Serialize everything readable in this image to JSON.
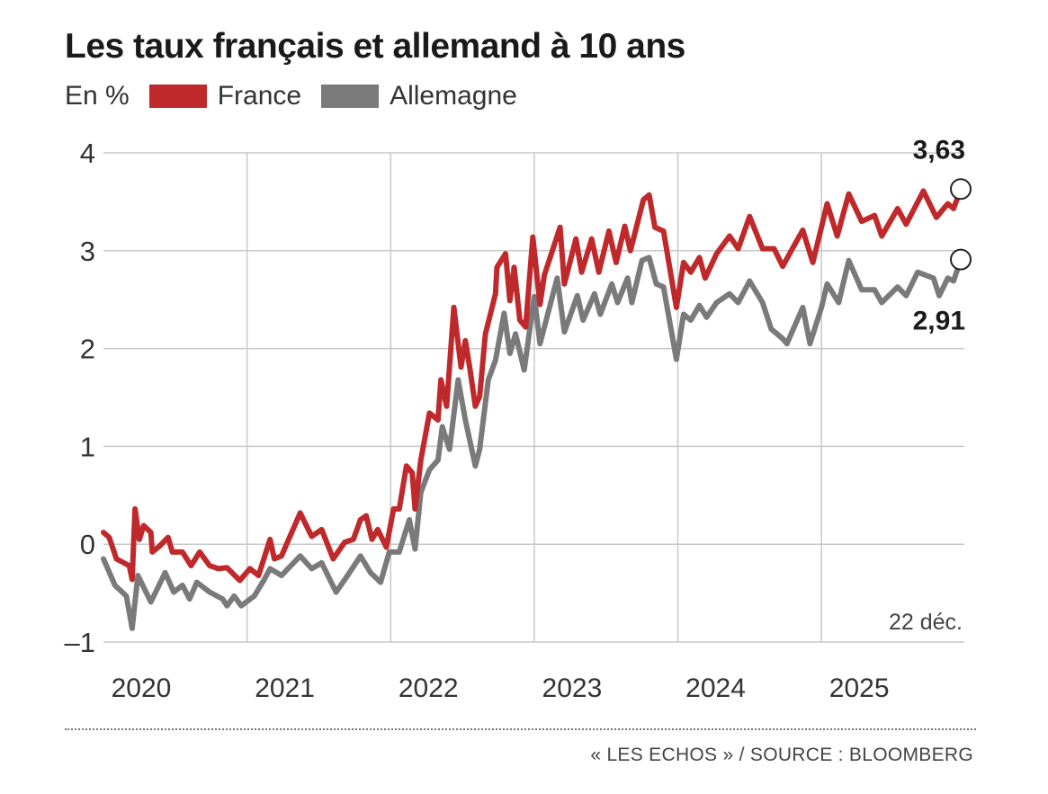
{
  "chart_data": {
    "type": "line",
    "title": "Les taux français et allemand à 10 ans",
    "unit_label": "En %",
    "xlabel": "",
    "ylabel": "En %",
    "ylim": [
      -1,
      4
    ],
    "xlim": [
      2020.0,
      2025.97
    ],
    "yticks": [
      {
        "value": 4,
        "label": "4"
      },
      {
        "value": 3,
        "label": "3"
      },
      {
        "value": 2,
        "label": "2"
      },
      {
        "value": 1,
        "label": "1"
      },
      {
        "value": 0,
        "label": "0"
      },
      {
        "value": -1,
        "label": "–1"
      }
    ],
    "xticks": [
      {
        "value": 2020,
        "label": "2020"
      },
      {
        "value": 2021,
        "label": "2021"
      },
      {
        "value": 2022,
        "label": "2022"
      },
      {
        "value": 2023,
        "label": "2023"
      },
      {
        "value": 2024,
        "label": "2024"
      },
      {
        "value": 2025,
        "label": "2025"
      }
    ],
    "grid": true,
    "legend_position": "top-left",
    "annotation": "22 déc.",
    "series": [
      {
        "name": "France",
        "color": "#c0292b",
        "end_label": "3,63",
        "end_value": 3.63,
        "points": [
          [
            2020.0,
            0.12
          ],
          [
            2020.04,
            0.07
          ],
          [
            2020.09,
            -0.15
          ],
          [
            2020.18,
            -0.22
          ],
          [
            2020.2,
            -0.36
          ],
          [
            2020.22,
            0.36
          ],
          [
            2020.25,
            0.05
          ],
          [
            2020.28,
            0.19
          ],
          [
            2020.33,
            0.12
          ],
          [
            2020.34,
            -0.08
          ],
          [
            2020.39,
            -0.02
          ],
          [
            2020.45,
            0.07
          ],
          [
            2020.48,
            -0.08
          ],
          [
            2020.55,
            -0.08
          ],
          [
            2020.61,
            -0.22
          ],
          [
            2020.67,
            -0.08
          ],
          [
            2020.74,
            -0.22
          ],
          [
            2020.8,
            -0.25
          ],
          [
            2020.86,
            -0.24
          ],
          [
            2020.95,
            -0.37
          ],
          [
            2021.02,
            -0.25
          ],
          [
            2021.08,
            -0.32
          ],
          [
            2021.16,
            0.05
          ],
          [
            2021.19,
            -0.15
          ],
          [
            2021.24,
            -0.12
          ],
          [
            2021.37,
            0.32
          ],
          [
            2021.45,
            0.08
          ],
          [
            2021.52,
            0.15
          ],
          [
            2021.6,
            -0.15
          ],
          [
            2021.68,
            0.02
          ],
          [
            2021.74,
            0.05
          ],
          [
            2021.79,
            0.25
          ],
          [
            2021.83,
            0.29
          ],
          [
            2021.87,
            0.05
          ],
          [
            2021.91,
            0.15
          ],
          [
            2021.97,
            -0.03
          ],
          [
            2022.02,
            0.36
          ],
          [
            2022.06,
            0.36
          ],
          [
            2022.11,
            0.8
          ],
          [
            2022.15,
            0.73
          ],
          [
            2022.17,
            0.36
          ],
          [
            2022.21,
            0.86
          ],
          [
            2022.27,
            1.34
          ],
          [
            2022.33,
            1.27
          ],
          [
            2022.35,
            1.68
          ],
          [
            2022.39,
            1.41
          ],
          [
            2022.44,
            2.42
          ],
          [
            2022.49,
            1.81
          ],
          [
            2022.52,
            2.08
          ],
          [
            2022.55,
            1.81
          ],
          [
            2022.59,
            1.41
          ],
          [
            2022.62,
            1.51
          ],
          [
            2022.66,
            2.15
          ],
          [
            2022.73,
            2.56
          ],
          [
            2022.74,
            2.83
          ],
          [
            2022.8,
            2.97
          ],
          [
            2022.83,
            2.49
          ],
          [
            2022.86,
            2.83
          ],
          [
            2022.9,
            2.29
          ],
          [
            2022.94,
            2.22
          ],
          [
            2022.99,
            3.14
          ],
          [
            2023.04,
            2.45
          ],
          [
            2023.07,
            2.75
          ],
          [
            2023.18,
            3.24
          ],
          [
            2023.21,
            2.66
          ],
          [
            2023.29,
            3.12
          ],
          [
            2023.33,
            2.78
          ],
          [
            2023.4,
            3.12
          ],
          [
            2023.45,
            2.78
          ],
          [
            2023.52,
            3.2
          ],
          [
            2023.57,
            2.88
          ],
          [
            2023.63,
            3.25
          ],
          [
            2023.67,
            3.0
          ],
          [
            2023.76,
            3.52
          ],
          [
            2023.8,
            3.57
          ],
          [
            2023.84,
            3.24
          ],
          [
            2023.9,
            3.2
          ],
          [
            2023.99,
            2.42
          ],
          [
            2024.04,
            2.88
          ],
          [
            2024.09,
            2.78
          ],
          [
            2024.15,
            2.93
          ],
          [
            2024.19,
            2.72
          ],
          [
            2024.27,
            2.97
          ],
          [
            2024.36,
            3.15
          ],
          [
            2024.42,
            3.02
          ],
          [
            2024.5,
            3.35
          ],
          [
            2024.59,
            3.02
          ],
          [
            2024.67,
            3.02
          ],
          [
            2024.73,
            2.84
          ],
          [
            2024.79,
            3.0
          ],
          [
            2024.87,
            3.21
          ],
          [
            2024.94,
            2.88
          ],
          [
            2025.04,
            3.48
          ],
          [
            2025.11,
            3.15
          ],
          [
            2025.19,
            3.58
          ],
          [
            2025.28,
            3.3
          ],
          [
            2025.37,
            3.36
          ],
          [
            2025.42,
            3.15
          ],
          [
            2025.53,
            3.43
          ],
          [
            2025.59,
            3.27
          ],
          [
            2025.71,
            3.61
          ],
          [
            2025.8,
            3.34
          ],
          [
            2025.88,
            3.48
          ],
          [
            2025.92,
            3.43
          ],
          [
            2025.97,
            3.63
          ]
        ]
      },
      {
        "name": "Allemagne",
        "color": "#7a7a7a",
        "end_label": "2,91",
        "end_value": 2.91,
        "points": [
          [
            2020.0,
            -0.15
          ],
          [
            2020.08,
            -0.42
          ],
          [
            2020.16,
            -0.53
          ],
          [
            2020.2,
            -0.86
          ],
          [
            2020.24,
            -0.32
          ],
          [
            2020.33,
            -0.59
          ],
          [
            2020.43,
            -0.29
          ],
          [
            2020.49,
            -0.49
          ],
          [
            2020.55,
            -0.42
          ],
          [
            2020.6,
            -0.56
          ],
          [
            2020.65,
            -0.39
          ],
          [
            2020.74,
            -0.49
          ],
          [
            2020.83,
            -0.56
          ],
          [
            2020.86,
            -0.63
          ],
          [
            2020.91,
            -0.53
          ],
          [
            2020.96,
            -0.63
          ],
          [
            2021.05,
            -0.53
          ],
          [
            2021.12,
            -0.36
          ],
          [
            2021.16,
            -0.25
          ],
          [
            2021.24,
            -0.32
          ],
          [
            2021.37,
            -0.12
          ],
          [
            2021.45,
            -0.25
          ],
          [
            2021.52,
            -0.19
          ],
          [
            2021.62,
            -0.49
          ],
          [
            2021.7,
            -0.32
          ],
          [
            2021.79,
            -0.12
          ],
          [
            2021.86,
            -0.29
          ],
          [
            2021.93,
            -0.39
          ],
          [
            2021.99,
            -0.08
          ],
          [
            2022.06,
            -0.08
          ],
          [
            2022.13,
            0.25
          ],
          [
            2022.17,
            -0.05
          ],
          [
            2022.21,
            0.53
          ],
          [
            2022.27,
            0.76
          ],
          [
            2022.33,
            0.86
          ],
          [
            2022.36,
            1.2
          ],
          [
            2022.41,
            0.97
          ],
          [
            2022.47,
            1.68
          ],
          [
            2022.52,
            1.27
          ],
          [
            2022.59,
            0.8
          ],
          [
            2022.62,
            0.97
          ],
          [
            2022.68,
            1.68
          ],
          [
            2022.73,
            1.88
          ],
          [
            2022.79,
            2.36
          ],
          [
            2022.83,
            1.95
          ],
          [
            2022.87,
            2.15
          ],
          [
            2022.93,
            1.78
          ],
          [
            2023.0,
            2.53
          ],
          [
            2023.04,
            2.05
          ],
          [
            2023.16,
            2.72
          ],
          [
            2023.21,
            2.17
          ],
          [
            2023.3,
            2.54
          ],
          [
            2023.34,
            2.29
          ],
          [
            2023.42,
            2.56
          ],
          [
            2023.46,
            2.35
          ],
          [
            2023.54,
            2.66
          ],
          [
            2023.58,
            2.47
          ],
          [
            2023.65,
            2.72
          ],
          [
            2023.68,
            2.47
          ],
          [
            2023.75,
            2.9
          ],
          [
            2023.8,
            2.93
          ],
          [
            2023.85,
            2.66
          ],
          [
            2023.9,
            2.63
          ],
          [
            2023.99,
            1.89
          ],
          [
            2024.04,
            2.35
          ],
          [
            2024.09,
            2.29
          ],
          [
            2024.15,
            2.44
          ],
          [
            2024.2,
            2.32
          ],
          [
            2024.27,
            2.47
          ],
          [
            2024.36,
            2.56
          ],
          [
            2024.42,
            2.47
          ],
          [
            2024.5,
            2.69
          ],
          [
            2024.59,
            2.47
          ],
          [
            2024.65,
            2.2
          ],
          [
            2024.73,
            2.1
          ],
          [
            2024.76,
            2.05
          ],
          [
            2024.87,
            2.42
          ],
          [
            2024.92,
            2.05
          ],
          [
            2025.0,
            2.42
          ],
          [
            2025.04,
            2.66
          ],
          [
            2025.12,
            2.47
          ],
          [
            2025.19,
            2.9
          ],
          [
            2025.28,
            2.6
          ],
          [
            2025.37,
            2.6
          ],
          [
            2025.42,
            2.47
          ],
          [
            2025.53,
            2.63
          ],
          [
            2025.59,
            2.54
          ],
          [
            2025.67,
            2.78
          ],
          [
            2025.78,
            2.72
          ],
          [
            2025.82,
            2.54
          ],
          [
            2025.88,
            2.72
          ],
          [
            2025.92,
            2.69
          ],
          [
            2025.97,
            2.91
          ]
        ]
      }
    ]
  },
  "footer": {
    "source": "« LES ECHOS » / SOURCE : BLOOMBERG"
  }
}
